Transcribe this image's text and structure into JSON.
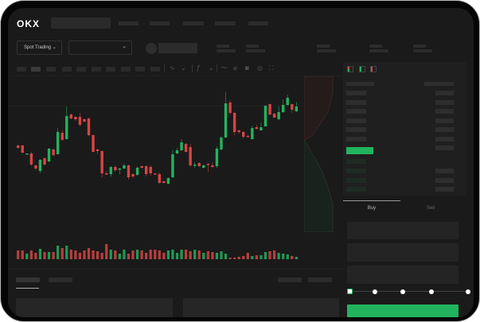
{
  "header": {
    "logo": "OKX"
  },
  "toolbar": {
    "market_select": "Spot Trading",
    "chevron": "⌄"
  },
  "orderbook": {
    "view_icons": [
      "orderbook-both-icon",
      "orderbook-bids-icon",
      "orderbook-asks-icon"
    ]
  },
  "trade": {
    "tabs": [
      "Buy",
      "Sell"
    ],
    "slider_percent": 0
  },
  "colors": {
    "up": "#22b35e",
    "down": "#d64545",
    "background": "#1a1a1a"
  },
  "chart_data": {
    "type": "candlestick",
    "candles": [
      [
        58,
        55,
        59,
        54
      ],
      [
        58,
        49,
        59,
        48
      ],
      [
        47,
        48,
        48,
        47
      ],
      [
        48,
        34,
        50,
        32
      ],
      [
        33,
        29,
        34,
        27
      ],
      [
        26,
        40,
        41,
        23
      ],
      [
        42,
        34,
        43,
        33
      ],
      [
        38,
        54,
        55,
        37
      ],
      [
        53,
        46,
        54,
        44
      ],
      [
        47,
        75,
        80,
        47
      ],
      [
        74,
        65,
        78,
        64
      ],
      [
        66,
        95,
        107,
        66
      ],
      [
        97,
        92,
        98,
        91
      ],
      [
        94,
        91,
        95,
        89
      ],
      [
        94,
        84,
        99,
        82
      ],
      [
        91,
        88,
        92,
        87
      ],
      [
        92,
        71,
        93,
        70
      ],
      [
        71,
        50,
        72,
        49
      ],
      [
        53,
        51,
        54,
        47
      ],
      [
        51,
        23,
        52,
        18
      ],
      [
        23,
        22,
        25,
        21
      ],
      [
        22,
        31,
        32,
        19
      ],
      [
        31,
        27,
        33,
        25
      ],
      [
        28,
        29,
        30,
        22
      ],
      [
        29,
        33,
        35,
        29
      ],
      [
        33,
        18,
        34,
        15
      ],
      [
        22,
        19,
        23,
        17
      ],
      [
        21,
        30,
        32,
        20
      ],
      [
        32,
        30,
        33,
        29
      ],
      [
        32,
        22,
        33,
        19
      ],
      [
        31,
        23,
        33,
        20
      ],
      [
        23,
        22,
        23,
        21
      ],
      [
        22,
        11,
        24,
        10
      ],
      [
        13,
        11,
        14,
        10
      ],
      [
        10,
        17,
        18,
        9
      ],
      [
        18,
        47,
        52,
        17
      ],
      [
        48,
        52,
        55,
        47
      ],
      [
        52,
        62,
        66,
        51
      ],
      [
        60,
        50,
        61,
        49
      ],
      [
        56,
        33,
        60,
        31
      ],
      [
        33,
        34,
        37,
        30
      ],
      [
        36,
        32,
        37,
        31
      ],
      [
        30,
        33,
        34,
        29
      ],
      [
        35,
        34,
        36,
        25
      ],
      [
        33,
        31,
        37,
        30
      ],
      [
        32,
        54,
        57,
        30
      ],
      [
        53,
        68,
        70,
        52
      ],
      [
        68,
        111,
        125,
        68
      ],
      [
        112,
        99,
        115,
        97
      ],
      [
        99,
        75,
        100,
        71
      ],
      [
        77,
        75,
        78,
        73
      ],
      [
        75,
        69,
        76,
        67
      ],
      [
        70,
        69,
        72,
        69
      ],
      [
        66,
        80,
        83,
        66
      ],
      [
        81,
        79,
        84,
        78
      ],
      [
        77,
        81,
        87,
        77
      ],
      [
        82,
        108,
        109,
        82
      ],
      [
        110,
        97,
        111,
        96
      ],
      [
        98,
        93,
        99,
        93
      ],
      [
        91,
        100,
        107,
        90
      ],
      [
        100,
        109,
        116,
        99
      ],
      [
        109,
        118,
        122,
        108
      ],
      [
        110,
        103,
        111,
        99
      ],
      [
        101,
        107,
        113,
        100
      ]
    ],
    "volume": [
      11,
      11,
      7,
      11,
      8,
      13,
      9,
      9,
      9,
      17,
      14,
      17,
      12,
      11,
      8,
      11,
      14,
      11,
      10,
      8,
      19,
      12,
      11,
      7,
      12,
      7,
      11,
      12,
      11,
      8,
      12,
      12,
      11,
      8,
      11,
      12,
      8,
      12,
      12,
      10,
      12,
      11,
      8,
      10,
      9,
      8,
      10,
      7,
      2,
      2,
      3,
      4,
      8,
      4,
      5,
      5,
      9,
      10,
      11,
      8,
      7,
      6,
      4,
      3
    ]
  }
}
